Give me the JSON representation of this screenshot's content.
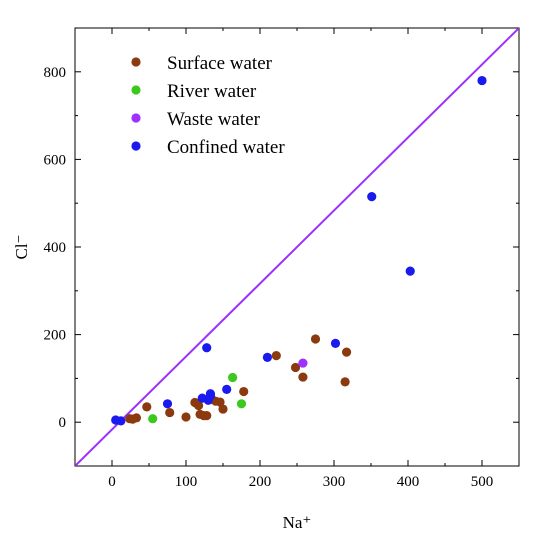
{
  "chart_data": {
    "type": "scatter",
    "xlabel": "Na⁺",
    "ylabel": "Cl⁻",
    "xlim": [
      -50,
      550
    ],
    "ylim": [
      -100,
      900
    ],
    "xticks": [
      0,
      100,
      200,
      300,
      400,
      500
    ],
    "yticks": [
      0,
      200,
      400,
      600,
      800
    ],
    "grid": false,
    "legend_position": "top-left",
    "reference_line": {
      "x": [
        -50,
        550
      ],
      "y": [
        -100,
        900
      ],
      "color": "#9b30ff"
    },
    "series": [
      {
        "name": "Surface water",
        "color": "#8b3a10",
        "points": [
          [
            24,
            8
          ],
          [
            28,
            7
          ],
          [
            33,
            10
          ],
          [
            47,
            35
          ],
          [
            78,
            22
          ],
          [
            100,
            12
          ],
          [
            112,
            45
          ],
          [
            117,
            38
          ],
          [
            119,
            18
          ],
          [
            124,
            15
          ],
          [
            128,
            15
          ],
          [
            135,
            52
          ],
          [
            140,
            48
          ],
          [
            146,
            46
          ],
          [
            150,
            30
          ],
          [
            178,
            70
          ],
          [
            222,
            152
          ],
          [
            248,
            125
          ],
          [
            258,
            103
          ],
          [
            275,
            190
          ],
          [
            317,
            160
          ],
          [
            315,
            92
          ]
        ]
      },
      {
        "name": "River water",
        "color": "#3cc81e",
        "points": [
          [
            55,
            8
          ],
          [
            163,
            102
          ],
          [
            175,
            42
          ]
        ]
      },
      {
        "name": "Waste water",
        "color": "#a030ff",
        "points": [
          [
            258,
            135
          ]
        ]
      },
      {
        "name": "Confined water",
        "color": "#1a1aee",
        "points": [
          [
            5,
            5
          ],
          [
            12,
            3
          ],
          [
            75,
            42
          ],
          [
            122,
            55
          ],
          [
            128,
            170
          ],
          [
            130,
            50
          ],
          [
            133,
            60
          ],
          [
            133,
            65
          ],
          [
            155,
            75
          ],
          [
            210,
            148
          ],
          [
            302,
            180
          ],
          [
            351,
            515
          ],
          [
            403,
            345
          ],
          [
            500,
            780
          ]
        ]
      }
    ]
  }
}
